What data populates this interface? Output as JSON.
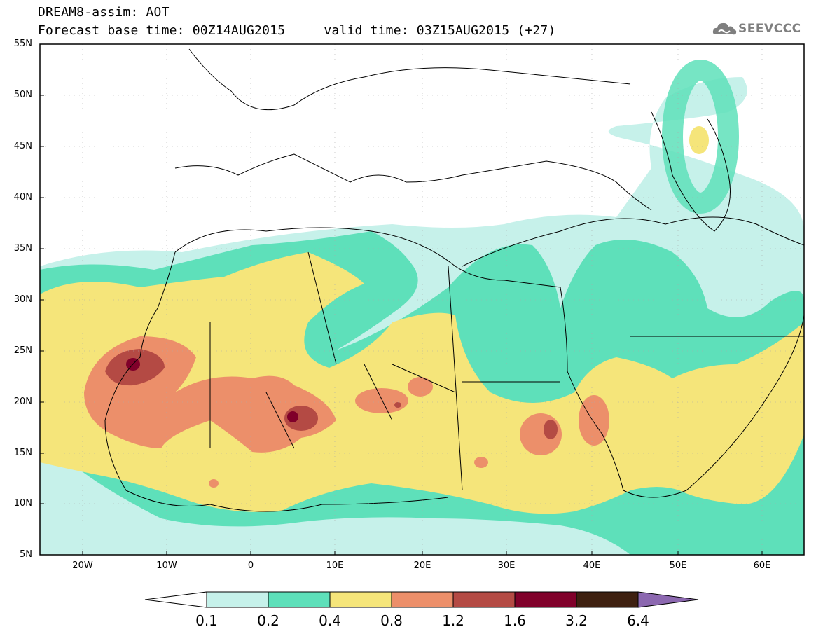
{
  "header": {
    "line1": "DREAM8-assim: AOT",
    "line2": "Forecast base time: 00Z14AUG2015     valid time: 03Z15AUG2015 (+27)",
    "logo_text": "SEEVCCC"
  },
  "map": {
    "lat_labels": [
      "55N",
      "50N",
      "45N",
      "40N",
      "35N",
      "30N",
      "25N",
      "20N",
      "15N",
      "10N",
      "5N"
    ],
    "lon_labels": [
      "20W",
      "10W",
      "0",
      "10E",
      "20E",
      "30E",
      "40E",
      "50E",
      "60E"
    ],
    "field": "AOT"
  },
  "colorbar": {
    "labels": [
      "0.1",
      "0.2",
      "0.4",
      "0.8",
      "1.2",
      "1.6",
      "3.2",
      "6.4"
    ],
    "colors": [
      "#ffffff",
      "#c6f1ea",
      "#5ee0ba",
      "#f5e57a",
      "#ec8f6a",
      "#b44a44",
      "#80002a",
      "#3e2010",
      "#8c68b0"
    ]
  }
}
